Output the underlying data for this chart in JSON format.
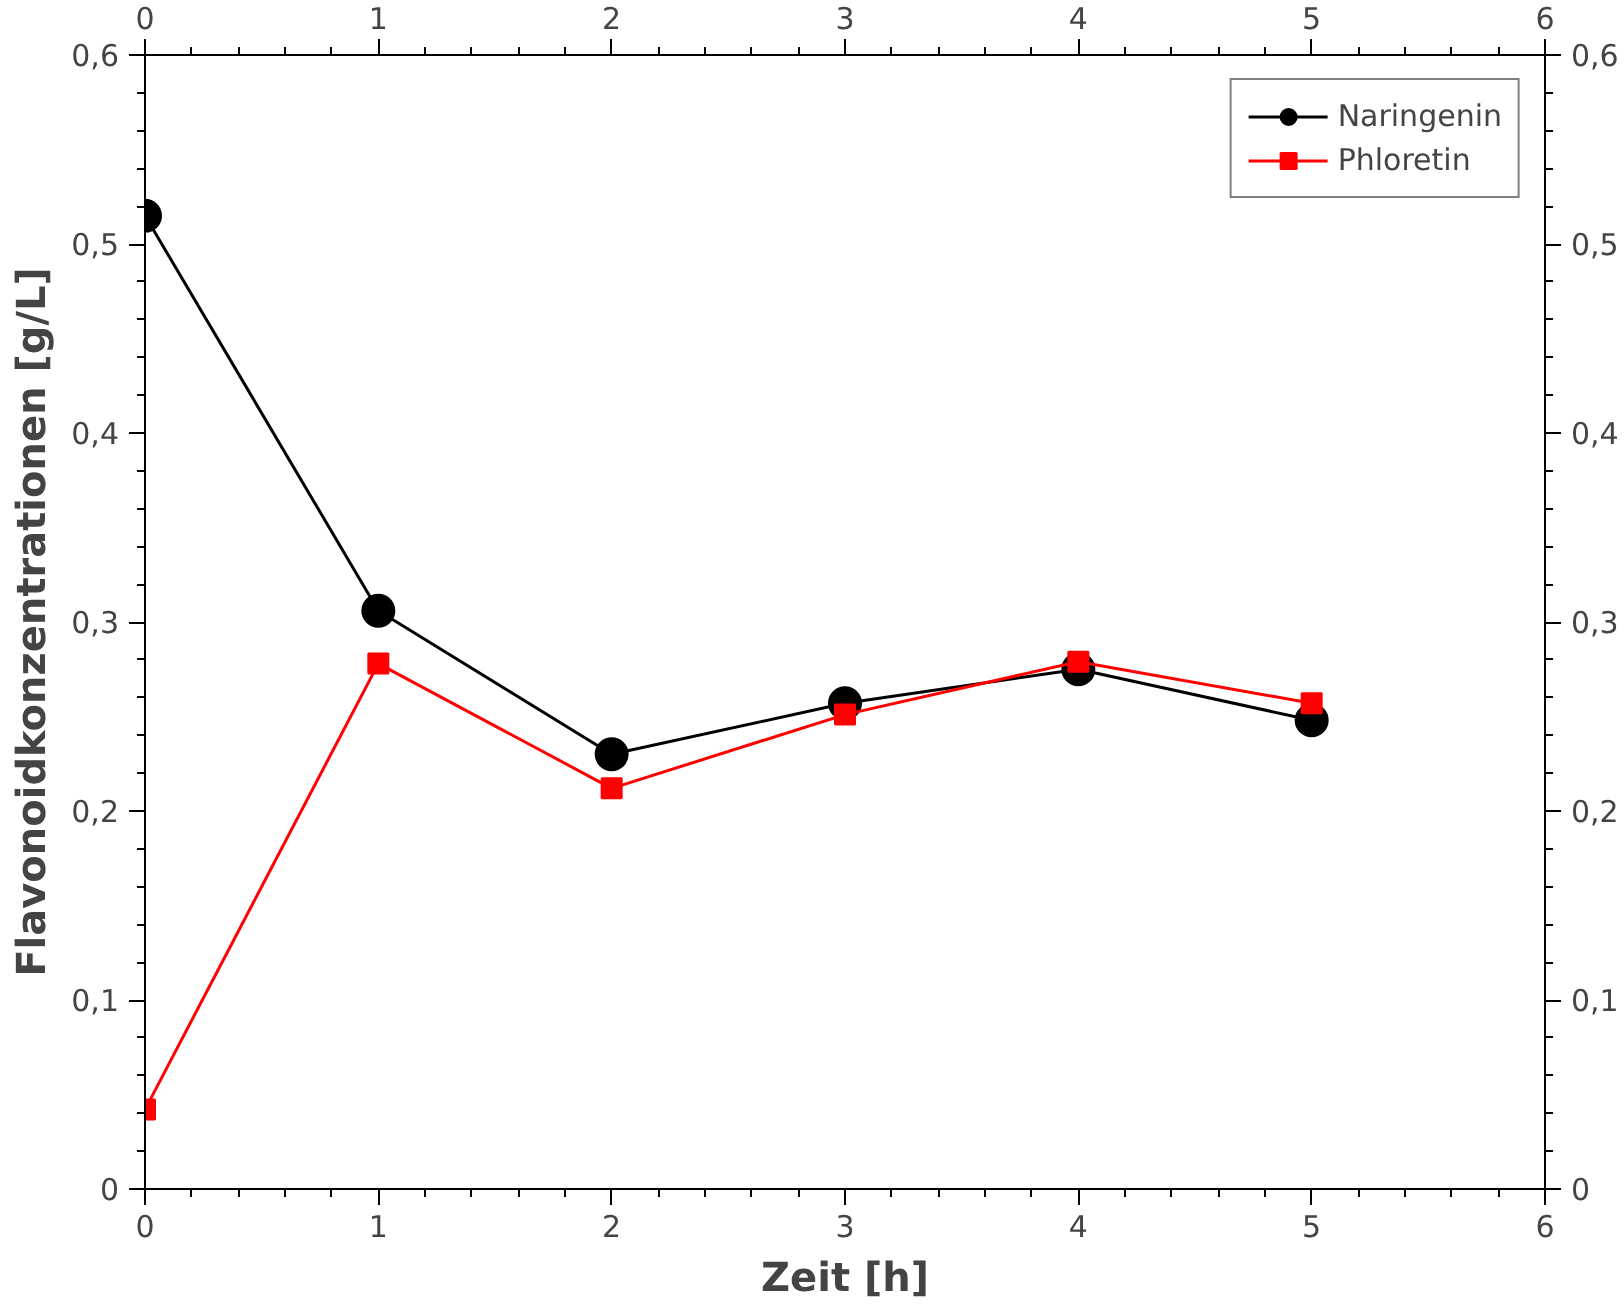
{
  "chart_data": {
    "type": "line",
    "xlabel": "Zeit [h]",
    "ylabel": "Flavonoidkonzentrationen [g/L]",
    "x": [
      0,
      1,
      2,
      3,
      4,
      5
    ],
    "series": [
      {
        "name": "Naringenin",
        "color": "#000000",
        "marker": "circle",
        "values": [
          0.515,
          0.306,
          0.23,
          0.257,
          0.275,
          0.248
        ]
      },
      {
        "name": "Phloretin",
        "color": "#ff0000",
        "marker": "square",
        "values": [
          0.042,
          0.278,
          0.212,
          0.251,
          0.279,
          0.257
        ]
      }
    ],
    "xlim": [
      0,
      6
    ],
    "xticks": [
      0,
      1,
      2,
      3,
      4,
      5,
      6
    ],
    "x2lim": [
      0,
      6
    ],
    "x2ticks": [
      0,
      1,
      2,
      3,
      4,
      5,
      6
    ],
    "ylim": [
      0,
      0.6
    ],
    "yticks": [
      0,
      {
        "value": 0.1,
        "label": "0,1"
      },
      {
        "value": 0.2,
        "label": "0,2"
      },
      {
        "value": 0.3,
        "label": "0,3"
      },
      {
        "value": 0.4,
        "label": "0,4"
      },
      {
        "value": 0.5,
        "label": "0,5"
      },
      {
        "value": 0.6,
        "label": "0,6"
      }
    ],
    "y2lim": [
      0,
      0.6
    ],
    "y2ticks": [
      0,
      {
        "value": 0.1,
        "label": "0,1"
      },
      {
        "value": 0.2,
        "label": "0,2"
      },
      {
        "value": 0.3,
        "label": "0,3"
      },
      {
        "value": 0.4,
        "label": "0,4"
      },
      {
        "value": 0.5,
        "label": "0,5"
      },
      {
        "value": 0.6,
        "label": "0,6"
      }
    ],
    "grid": false,
    "legend": "top right",
    "line_style": "solid"
  }
}
